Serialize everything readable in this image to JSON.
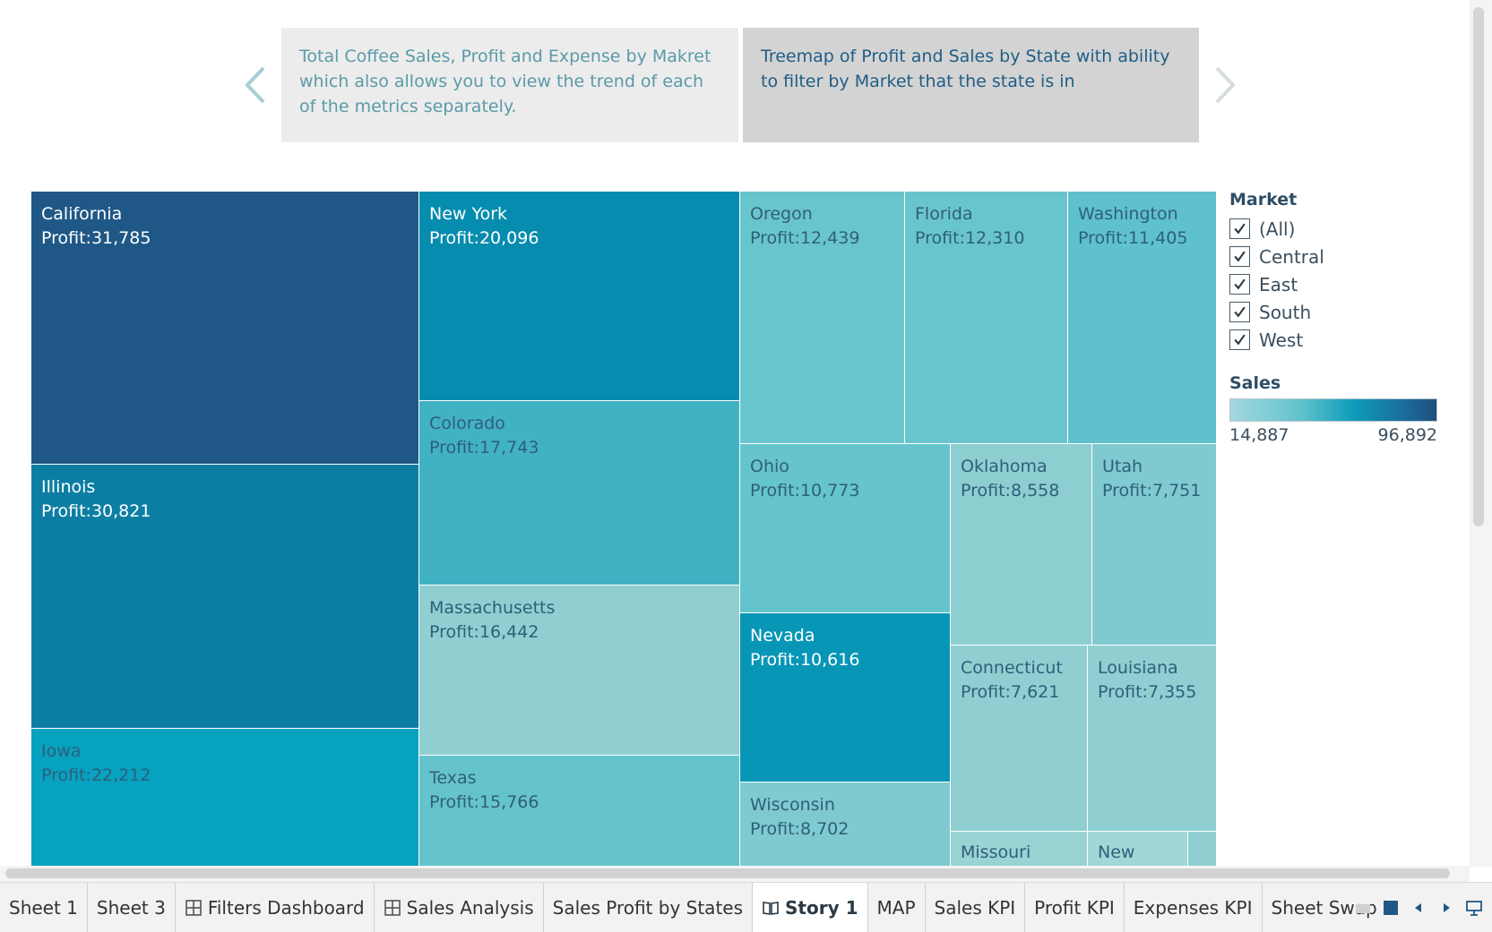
{
  "story": {
    "points": [
      {
        "text": "Total Coffee Sales, Profit and Expense by Makret which also allows you to view the trend of each of the metrics separately."
      },
      {
        "text": "Treemap of Profit and Sales by State with ability to filter by Market that the state is in"
      }
    ]
  },
  "treemap": {
    "tiles": [
      {
        "state": "California",
        "profit": "Profit:31,785",
        "color": "#1f5886"
      },
      {
        "state": "Illinois",
        "profit": "Profit:30,821",
        "color": "#0c7ea3"
      },
      {
        "state": "Iowa",
        "profit": "Profit:22,212",
        "color": "#06a2bf"
      },
      {
        "state": "New York",
        "profit": "Profit:20,096",
        "color": "#068cae"
      },
      {
        "state": "Colorado",
        "profit": "Profit:17,743",
        "color": "#41b2c4"
      },
      {
        "state": "Massachusetts",
        "profit": "Profit:16,442",
        "color": "#8fcfd1"
      },
      {
        "state": "Texas",
        "profit": "Profit:15,766",
        "color": "#65c3cd"
      },
      {
        "state": "Oregon",
        "profit": "Profit:12,439",
        "color": "#69c5cd"
      },
      {
        "state": "Florida",
        "profit": "Profit:12,310",
        "color": "#69c5cd"
      },
      {
        "state": "Washington",
        "profit": "Profit:11,405",
        "color": "#5ec1cb"
      },
      {
        "state": "Ohio",
        "profit": "Profit:10,773",
        "color": "#65c4cd"
      },
      {
        "state": "Oklahoma",
        "profit": "Profit:8,558",
        "color": "#8dced1"
      },
      {
        "state": "Utah",
        "profit": "Profit:7,751",
        "color": "#7fcad0"
      },
      {
        "state": "Nevada",
        "profit": "Profit:10,616",
        "color": "#0896b6"
      },
      {
        "state": "Connecticut",
        "profit": "Profit:7,621",
        "color": "#8fcfd1"
      },
      {
        "state": "Louisiana",
        "profit": "Profit:7,355",
        "color": "#8fcfd1"
      },
      {
        "state": "Wisconsin",
        "profit": "Profit:8,702",
        "color": "#7fcad0"
      },
      {
        "state": "Missouri",
        "profit": "",
        "color": "#99d3d4"
      },
      {
        "state": "New",
        "profit": "",
        "color": "#a3d7d7"
      },
      {
        "state": "",
        "profit": "",
        "color": "#8fcfd1"
      }
    ]
  },
  "legend": {
    "market_title": "Market",
    "markets": [
      {
        "label": "(All)",
        "checked": true
      },
      {
        "label": "Central",
        "checked": true
      },
      {
        "label": "East",
        "checked": true
      },
      {
        "label": "South",
        "checked": true
      },
      {
        "label": "West",
        "checked": true
      }
    ],
    "sales_title": "Sales",
    "sales_min": "14,887",
    "sales_max": "96,892"
  },
  "tabs": [
    {
      "label": "Sheet 1",
      "icon": ""
    },
    {
      "label": "Sheet 3",
      "icon": ""
    },
    {
      "label": "Filters Dashboard",
      "icon": "dashboard-icon"
    },
    {
      "label": "Sales Analysis",
      "icon": "dashboard-icon"
    },
    {
      "label": "Sales Profit by States",
      "icon": ""
    },
    {
      "label": "Story 1",
      "icon": "story-book-icon",
      "active": true
    },
    {
      "label": "MAP",
      "icon": ""
    },
    {
      "label": "Sales KPI",
      "icon": ""
    },
    {
      "label": "Profit KPI",
      "icon": ""
    },
    {
      "label": "Expenses KPI",
      "icon": ""
    },
    {
      "label": "Sheet Swap",
      "icon": ""
    }
  ]
}
